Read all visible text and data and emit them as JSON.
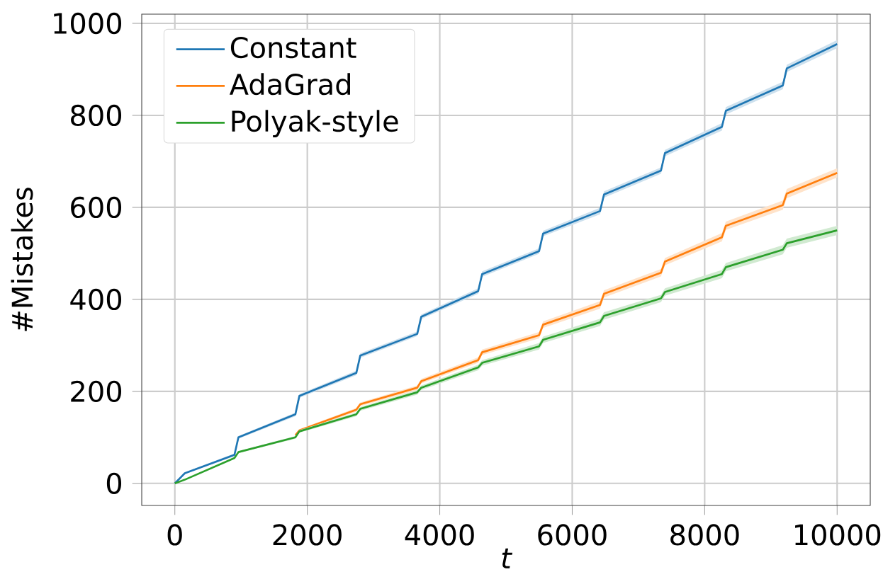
{
  "chart_data": {
    "type": "line",
    "xlabel": "t",
    "ylabel": "#Mistakes",
    "x": [
      0,
      150,
      900,
      960,
      1820,
      1880,
      2740,
      2800,
      3660,
      3720,
      4580,
      4640,
      5500,
      5560,
      6420,
      6480,
      7340,
      7400,
      8260,
      8320,
      9180,
      9240,
      10000
    ],
    "series": [
      {
        "name": "Constant",
        "color": "#1f77b4",
        "values": [
          0,
          22,
          62,
          100,
          150,
          190,
          240,
          278,
          325,
          362,
          418,
          455,
          505,
          543,
          592,
          628,
          680,
          718,
          775,
          810,
          865,
          902,
          955
        ],
        "lower": [
          0,
          20,
          59,
          97,
          146,
          186,
          235,
          273,
          320,
          357,
          412,
          449,
          499,
          537,
          585,
          621,
          673,
          711,
          767,
          802,
          857,
          894,
          946
        ],
        "upper": [
          0,
          24,
          65,
          103,
          154,
          194,
          245,
          283,
          330,
          367,
          424,
          461,
          511,
          549,
          599,
          635,
          687,
          725,
          783,
          818,
          873,
          910,
          964
        ]
      },
      {
        "name": "AdaGrad",
        "color": "#ff7f0e",
        "values": [
          null,
          null,
          null,
          null,
          105,
          115,
          160,
          172,
          208,
          222,
          268,
          285,
          322,
          345,
          388,
          412,
          458,
          482,
          535,
          560,
          605,
          630,
          675
        ],
        "lower": [
          null,
          null,
          null,
          null,
          102,
          112,
          156,
          168,
          203,
          217,
          262,
          279,
          315,
          338,
          380,
          404,
          450,
          474,
          526,
          551,
          595,
          620,
          665
        ],
        "upper": [
          null,
          null,
          null,
          null,
          108,
          118,
          164,
          176,
          213,
          227,
          274,
          291,
          329,
          352,
          396,
          420,
          466,
          490,
          544,
          569,
          615,
          640,
          685
        ]
      },
      {
        "name": "Polyak-style",
        "color": "#2ca02c",
        "values": [
          0,
          8,
          55,
          68,
          100,
          113,
          150,
          162,
          198,
          208,
          252,
          262,
          298,
          312,
          350,
          364,
          402,
          416,
          455,
          470,
          508,
          522,
          550
        ],
        "lower": [
          0,
          7,
          53,
          66,
          97,
          110,
          146,
          158,
          193,
          203,
          246,
          256,
          291,
          305,
          342,
          356,
          394,
          408,
          446,
          461,
          498,
          512,
          540
        ],
        "upper": [
          0,
          9,
          57,
          70,
          103,
          116,
          154,
          166,
          203,
          213,
          258,
          268,
          305,
          319,
          358,
          372,
          410,
          424,
          464,
          479,
          518,
          532,
          560
        ]
      }
    ],
    "xlim": [
      -500,
      10500
    ],
    "ylim": [
      -48,
      1020
    ],
    "xticks": [
      0,
      2000,
      4000,
      6000,
      8000,
      10000
    ],
    "yticks": [
      0,
      200,
      400,
      600,
      800,
      1000
    ],
    "grid": true,
    "legend": "top left"
  }
}
